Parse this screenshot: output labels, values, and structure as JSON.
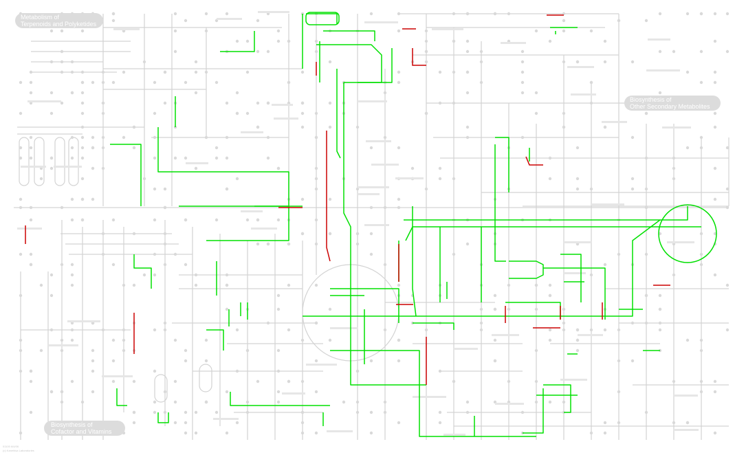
{
  "map": {
    "background": "#ffffff",
    "colors": {
      "base": "#d3d3d3",
      "node": "#d9d9d9",
      "highlight_green": "#00e000",
      "highlight_red": "#cc0000",
      "category_pill": "#dcdcdc",
      "category_text": "#ffffff"
    }
  },
  "categories": [
    {
      "l1": "Metabolism of",
      "l2": "Terpenoids and Polyketides"
    },
    {
      "l1": "Biosynthesis of",
      "l2": "Other Secondary Metabolites"
    },
    {
      "l1": "Biosynthesis of",
      "l2": "Cofactor and Vitamins"
    }
  ],
  "footer": [
    "01100 6/4/06",
    "(c) Kanehisa Laboratories"
  ]
}
